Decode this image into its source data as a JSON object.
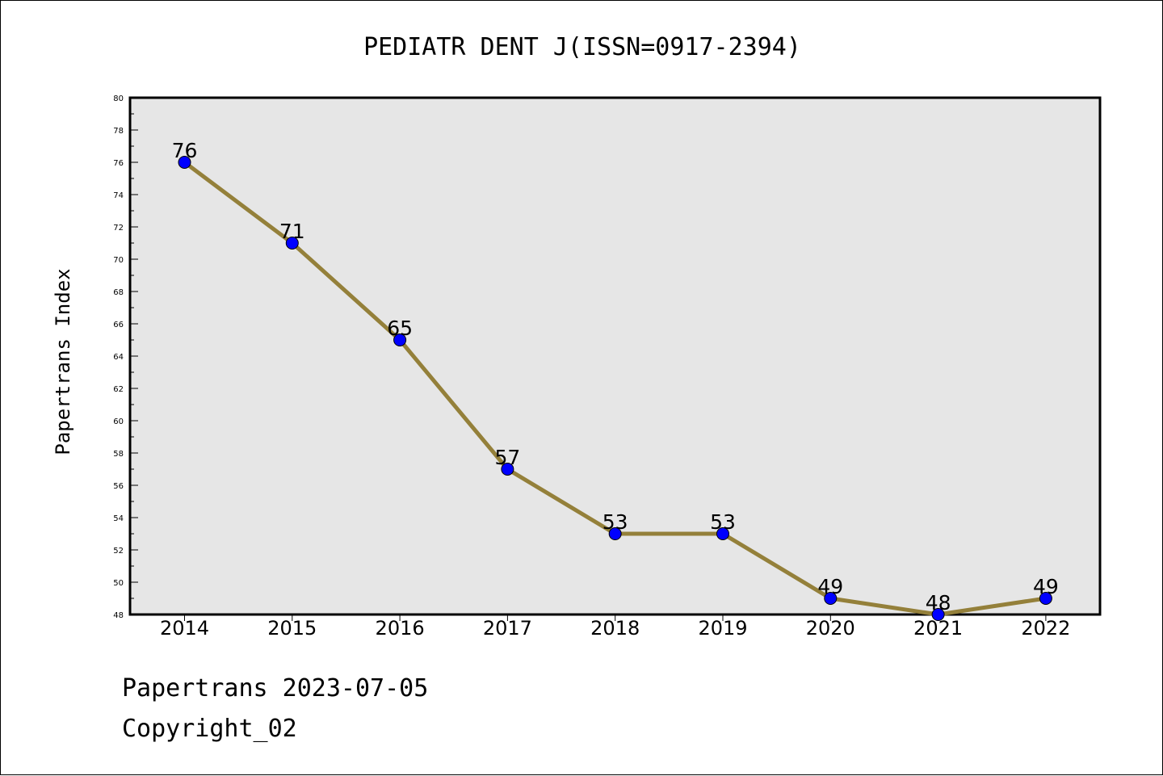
{
  "chart_data": {
    "type": "line",
    "title": "PEDIATR DENT J(ISSN=0917-2394)",
    "xlabel": "",
    "ylabel": "Papertrans Index",
    "categories": [
      "2014",
      "2015",
      "2016",
      "2017",
      "2018",
      "2019",
      "2020",
      "2021",
      "2022"
    ],
    "series": [
      {
        "values": [
          76,
          71,
          65,
          57,
          53,
          53,
          49,
          48,
          49
        ]
      }
    ],
    "data_labels": [
      "76",
      "71",
      "65",
      "57",
      "53",
      "53",
      "49",
      "48",
      "49"
    ],
    "ylim": [
      48,
      80
    ],
    "yticks": [
      "48",
      "50",
      "52",
      "54",
      "56",
      "58",
      "60",
      "62",
      "64",
      "66",
      "68",
      "70",
      "72",
      "74",
      "76",
      "78",
      "80"
    ],
    "grid": false,
    "colors": {
      "line": "#94803a",
      "marker": "#0000ff",
      "plot_background": "#e6e6e6"
    }
  },
  "footer": {
    "line1": "Papertrans 2023-07-05",
    "line2": "Copyright_02"
  }
}
